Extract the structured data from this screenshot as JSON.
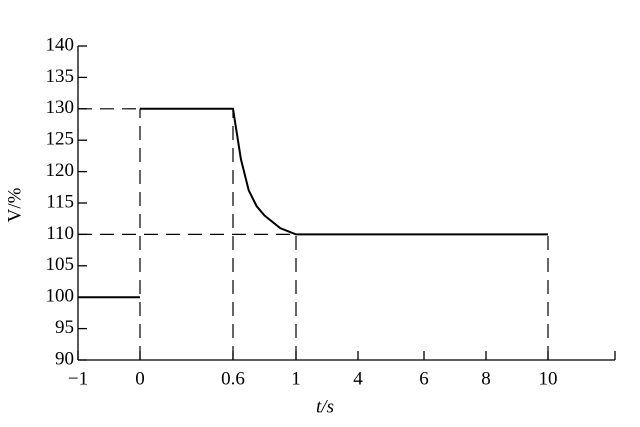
{
  "chart_data": {
    "type": "line",
    "x_label": "t/s",
    "y_label": "V/%",
    "x": [
      -1,
      0,
      0,
      0,
      0.6,
      0.65,
      0.7,
      0.75,
      0.8,
      0.9,
      1,
      10
    ],
    "series": [
      {
        "color": "#000000",
        "values": [
          100,
          100,
          null,
          130,
          130,
          122,
          117,
          114.5,
          113,
          111,
          110,
          110
        ]
      }
    ],
    "xlim": [
      -1,
      12
    ],
    "xticks": [
      {
        "value": -1,
        "label": "−1"
      },
      0,
      0.6,
      1,
      4,
      6,
      8,
      10
    ],
    "ylim": [
      90,
      140
    ],
    "yticks": [
      90,
      95,
      100,
      105,
      110,
      115,
      120,
      125,
      130,
      135,
      140
    ],
    "grid": false
  }
}
